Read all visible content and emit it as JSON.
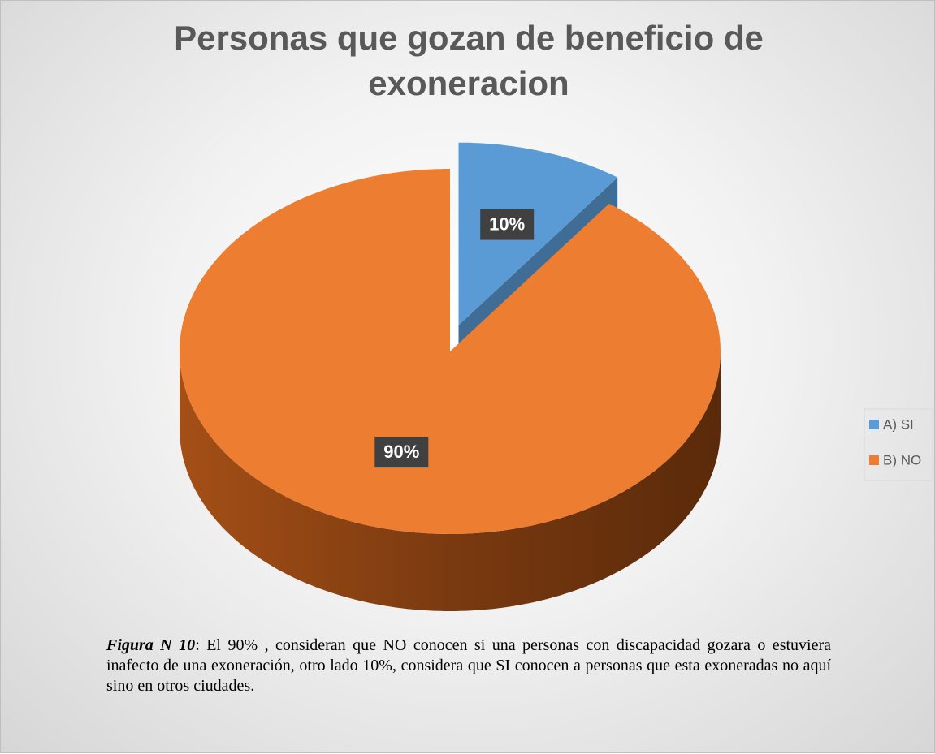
{
  "chart_data": {
    "type": "pie3d",
    "title": "Personas que gozan de beneficio de exoneracion",
    "categories": [
      "A) SI",
      "B) NO"
    ],
    "values": [
      10,
      90
    ],
    "value_labels": [
      "10%",
      "90%"
    ],
    "colors": [
      "#5b9bd5",
      "#ed7d31"
    ],
    "exploded": [
      true,
      false
    ],
    "legend": "right"
  },
  "caption": {
    "label": "Figura N 10",
    "text": ": El 90% , consideran que NO conocen si una personas con discapacidad gozara o estuviera inafecto de una exoneración, otro lado 10%, considera que SI conocen a personas que esta exoneradas no aquí sino en otros ciudades."
  }
}
